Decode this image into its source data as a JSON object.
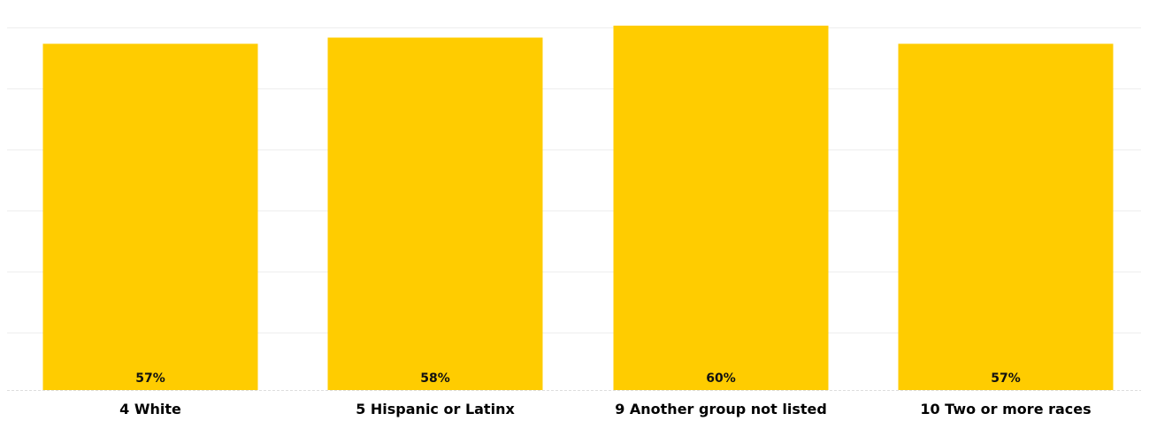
{
  "chart_data": {
    "type": "bar",
    "categories": [
      "4 White",
      "5 Hispanic or Latinx",
      "9 Another group not listed",
      "10 Two or more races"
    ],
    "values": [
      57,
      58,
      60,
      57
    ],
    "data_labels": [
      "57%",
      "58%",
      "60%",
      "57%"
    ],
    "value_unit": "%",
    "title": "",
    "xlabel": "",
    "ylabel": "",
    "ylim": [
      0,
      60
    ],
    "grid": true,
    "legend": "none",
    "bar_color": "#FFCC00",
    "grid_color": "#EEEEEE"
  }
}
